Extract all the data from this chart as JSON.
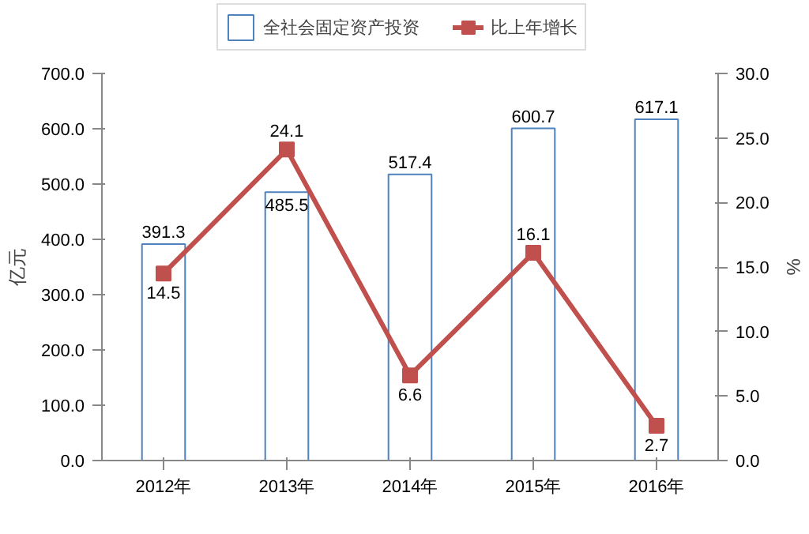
{
  "chart_data": {
    "type": "bar",
    "categories": [
      "2012年",
      "2013年",
      "2014年",
      "2015年",
      "2016年"
    ],
    "ylabel": "亿元",
    "y2label": "%",
    "series": [
      {
        "name": "全社会固定资产投资",
        "color": "#4f81bd",
        "values": [
          391.3,
          485.5,
          517.4,
          600.7,
          617.1
        ]
      },
      {
        "name": "比上年增长",
        "type": "line",
        "axis": "y2",
        "color": "#c0504d",
        "marker": "square",
        "values": [
          14.5,
          24.1,
          6.6,
          16.1,
          2.7
        ]
      }
    ],
    "ylim": [
      0,
      700
    ],
    "yticks": [
      {
        "value": 0,
        "label": "0.0"
      },
      {
        "value": 100,
        "label": "100.0"
      },
      {
        "value": 200,
        "label": "200.0"
      },
      {
        "value": 300,
        "label": "300.0"
      },
      {
        "value": 400,
        "label": "400.0"
      },
      {
        "value": 500,
        "label": "500.0"
      },
      {
        "value": 600,
        "label": "600.0"
      },
      {
        "value": 700,
        "label": "700.0"
      }
    ],
    "y2lim": [
      0,
      30
    ],
    "y2ticks": [
      {
        "value": 0,
        "label": "0.0"
      },
      {
        "value": 5,
        "label": "5.0"
      },
      {
        "value": 10,
        "label": "10.0"
      },
      {
        "value": 15,
        "label": "15.0"
      },
      {
        "value": 20,
        "label": "20.0"
      },
      {
        "value": 25,
        "label": "25.0"
      },
      {
        "value": 30,
        "label": "30.0"
      }
    ],
    "data_labels": true,
    "grid": false,
    "legend": "top"
  }
}
